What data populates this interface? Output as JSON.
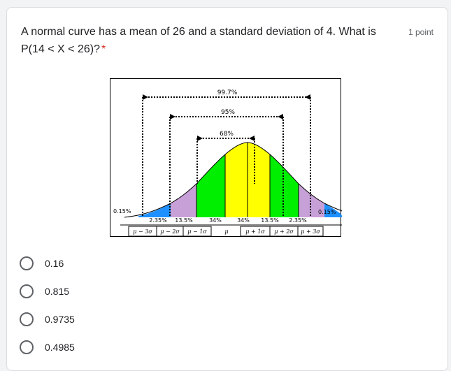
{
  "question": {
    "text": "A normal curve has a mean of 26 and a standard deviation of 4. What is P(14 < X < 26)?",
    "required_mark": "*",
    "points": "1 point"
  },
  "figure": {
    "range_labels": [
      "99.7%",
      "95%",
      "68%"
    ],
    "tail_labels": [
      "0.15%",
      "0.15%"
    ],
    "region_labels": [
      "2.35%",
      "13.5%",
      "34%",
      "34%",
      "13.5%",
      "2.35%"
    ],
    "axis_labels": [
      "μ − 3σ",
      "μ − 2σ",
      "μ − 1σ",
      "μ",
      "μ + 1σ",
      "μ + 2σ",
      "μ + 3σ"
    ],
    "colors": {
      "center": "#ffff00",
      "one_to_two": "#00ee00",
      "two_to_three": "#c8a0d8",
      "tail": "#1e90ff"
    }
  },
  "options": [
    {
      "label": "0.16"
    },
    {
      "label": "0.815"
    },
    {
      "label": "0.9735"
    },
    {
      "label": "0.4985"
    }
  ]
}
